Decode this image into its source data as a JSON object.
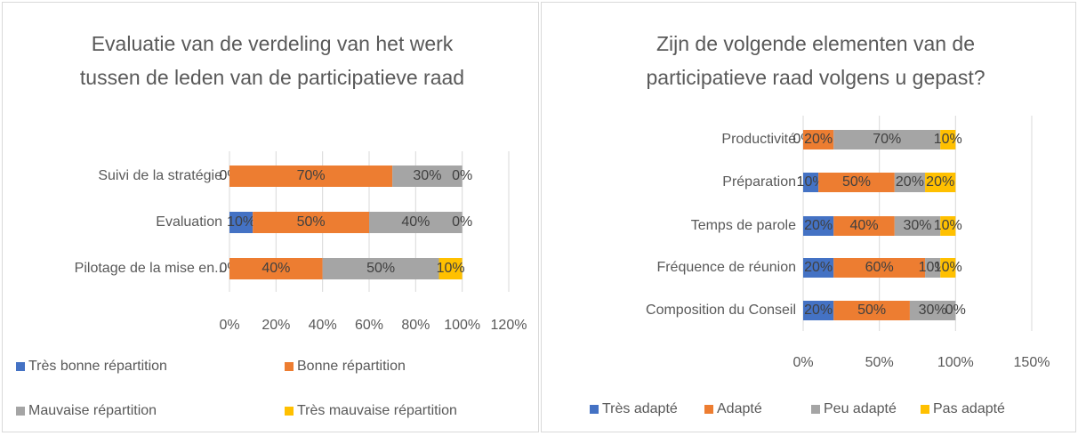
{
  "chart_data": [
    {
      "type": "stacked-bar-horizontal",
      "title": "Evaluatie van de verdeling van het werk tussen de leden van de participatieve raad",
      "categories": [
        "Suivi de la stratégie",
        "Evaluation",
        "Pilotage de la mise en.."
      ],
      "series": [
        {
          "name": "Très bonne répartition",
          "color": "#4472c4",
          "values": [
            0,
            10,
            0
          ],
          "value_labels": [
            "0%",
            "10%",
            "0%"
          ]
        },
        {
          "name": "Bonne répartition",
          "color": "#ed7d31",
          "values": [
            70,
            50,
            40
          ],
          "value_labels": [
            "70%",
            "50%",
            "40%"
          ]
        },
        {
          "name": "Mauvaise répartition",
          "color": "#a5a5a5",
          "values": [
            30,
            40,
            50
          ],
          "value_labels": [
            "30%",
            "40%",
            "50%"
          ]
        },
        {
          "name": "Très mauvaise répartition",
          "color": "#ffc000",
          "values": [
            0,
            0,
            10
          ],
          "value_labels": [
            "0%",
            "0%",
            "10%"
          ]
        }
      ],
      "xlim": [
        0,
        120
      ],
      "xticks": [
        {
          "value": 0,
          "label": "0%"
        },
        {
          "value": 20,
          "label": "20%"
        },
        {
          "value": 40,
          "label": "40%"
        },
        {
          "value": 60,
          "label": "60%"
        },
        {
          "value": 80,
          "label": "80%"
        },
        {
          "value": 100,
          "label": "100%"
        },
        {
          "value": 120,
          "label": "120%"
        }
      ],
      "grid": true,
      "legend": "bottom"
    },
    {
      "type": "stacked-bar-horizontal",
      "title": "Zijn de volgende elementen van de participatieve raad volgens u gepast?",
      "categories": [
        "Productivité",
        "Préparation",
        "Temps de parole",
        "Fréquence de réunion",
        "Composition du Conseil"
      ],
      "series": [
        {
          "name": "Très adapté",
          "color": "#4472c4",
          "values": [
            0,
            10,
            20,
            20,
            20
          ],
          "value_labels": [
            "0%",
            "10%",
            "20%",
            "20%",
            "20%"
          ]
        },
        {
          "name": "Adapté",
          "color": "#ed7d31",
          "values": [
            20,
            50,
            40,
            60,
            50
          ],
          "value_labels": [
            "20%",
            "50%",
            "40%",
            "60%",
            "50%"
          ]
        },
        {
          "name": "Peu adapté",
          "color": "#a5a5a5",
          "values": [
            70,
            20,
            30,
            10,
            30
          ],
          "value_labels": [
            "70%",
            "20%",
            "30%",
            "10%",
            "30%"
          ]
        },
        {
          "name": "Pas adapté",
          "color": "#ffc000",
          "values": [
            10,
            20,
            10,
            10,
            0
          ],
          "value_labels": [
            "10%",
            "20%",
            "10%",
            "10%",
            "0%"
          ]
        }
      ],
      "xlim": [
        0,
        150
      ],
      "xticks": [
        {
          "value": 0,
          "label": "0%"
        },
        {
          "value": 50,
          "label": "50%"
        },
        {
          "value": 100,
          "label": "100%"
        },
        {
          "value": 150,
          "label": "150%"
        }
      ],
      "grid": true,
      "legend": "bottom"
    }
  ]
}
